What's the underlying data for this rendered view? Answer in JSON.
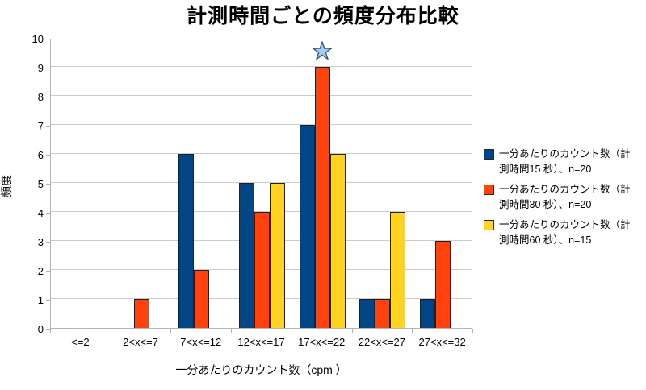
{
  "title": "計測時間ごとの頻度分布比較",
  "chart_data": {
    "type": "bar",
    "categories": [
      "<=2",
      "2<x<=7",
      "7<x<=12",
      "12<x<=17",
      "17<x<=22",
      "22<x<=27",
      "27<x<=32"
    ],
    "series": [
      {
        "name": "一分あたりのカウント数（計測時間15 秒）、n=20",
        "color": "#004586",
        "values": [
          0,
          0,
          6,
          5,
          7,
          1,
          1
        ]
      },
      {
        "name": "一分あたりのカウント数（計測時間30 秒）、n=20",
        "color": "#ff420e",
        "values": [
          0,
          1,
          2,
          4,
          9,
          1,
          3
        ]
      },
      {
        "name": "一分あたりのカウント数（計測時間60 秒）、n=15",
        "color": "#ffd320",
        "values": [
          0,
          0,
          0,
          5,
          6,
          4,
          0
        ]
      }
    ],
    "xlabel": "一分あたりのカウント数（cpm ）",
    "ylabel": "頻度",
    "ylim": [
      0,
      10
    ],
    "ytick_step": 1,
    "grid": true,
    "legend_position": "right",
    "annotation": {
      "type": "star-marker",
      "category": "17<x<=22",
      "series_index": 1,
      "y": 9.6,
      "fill": "#a6caf0",
      "stroke": "#35587f"
    }
  },
  "legend": {
    "items": [
      {
        "color": "#004586",
        "lines": [
          "一分あたりのカウント数（計",
          "測時間15 秒）、n=20"
        ]
      },
      {
        "color": "#ff420e",
        "lines": [
          "一分あたりのカウント数（計",
          "測時間30 秒）、n=20"
        ]
      },
      {
        "color": "#ffd320",
        "lines": [
          "一分あたりのカウント数（計",
          "測時間60 秒）、n=15"
        ]
      }
    ]
  },
  "style": {
    "grid_color": "#cccccc",
    "plot_border_color": "#b3b3b3",
    "bar_stroke": "#1f1f1f",
    "background": "#ffffff",
    "text_color": "#000000"
  }
}
